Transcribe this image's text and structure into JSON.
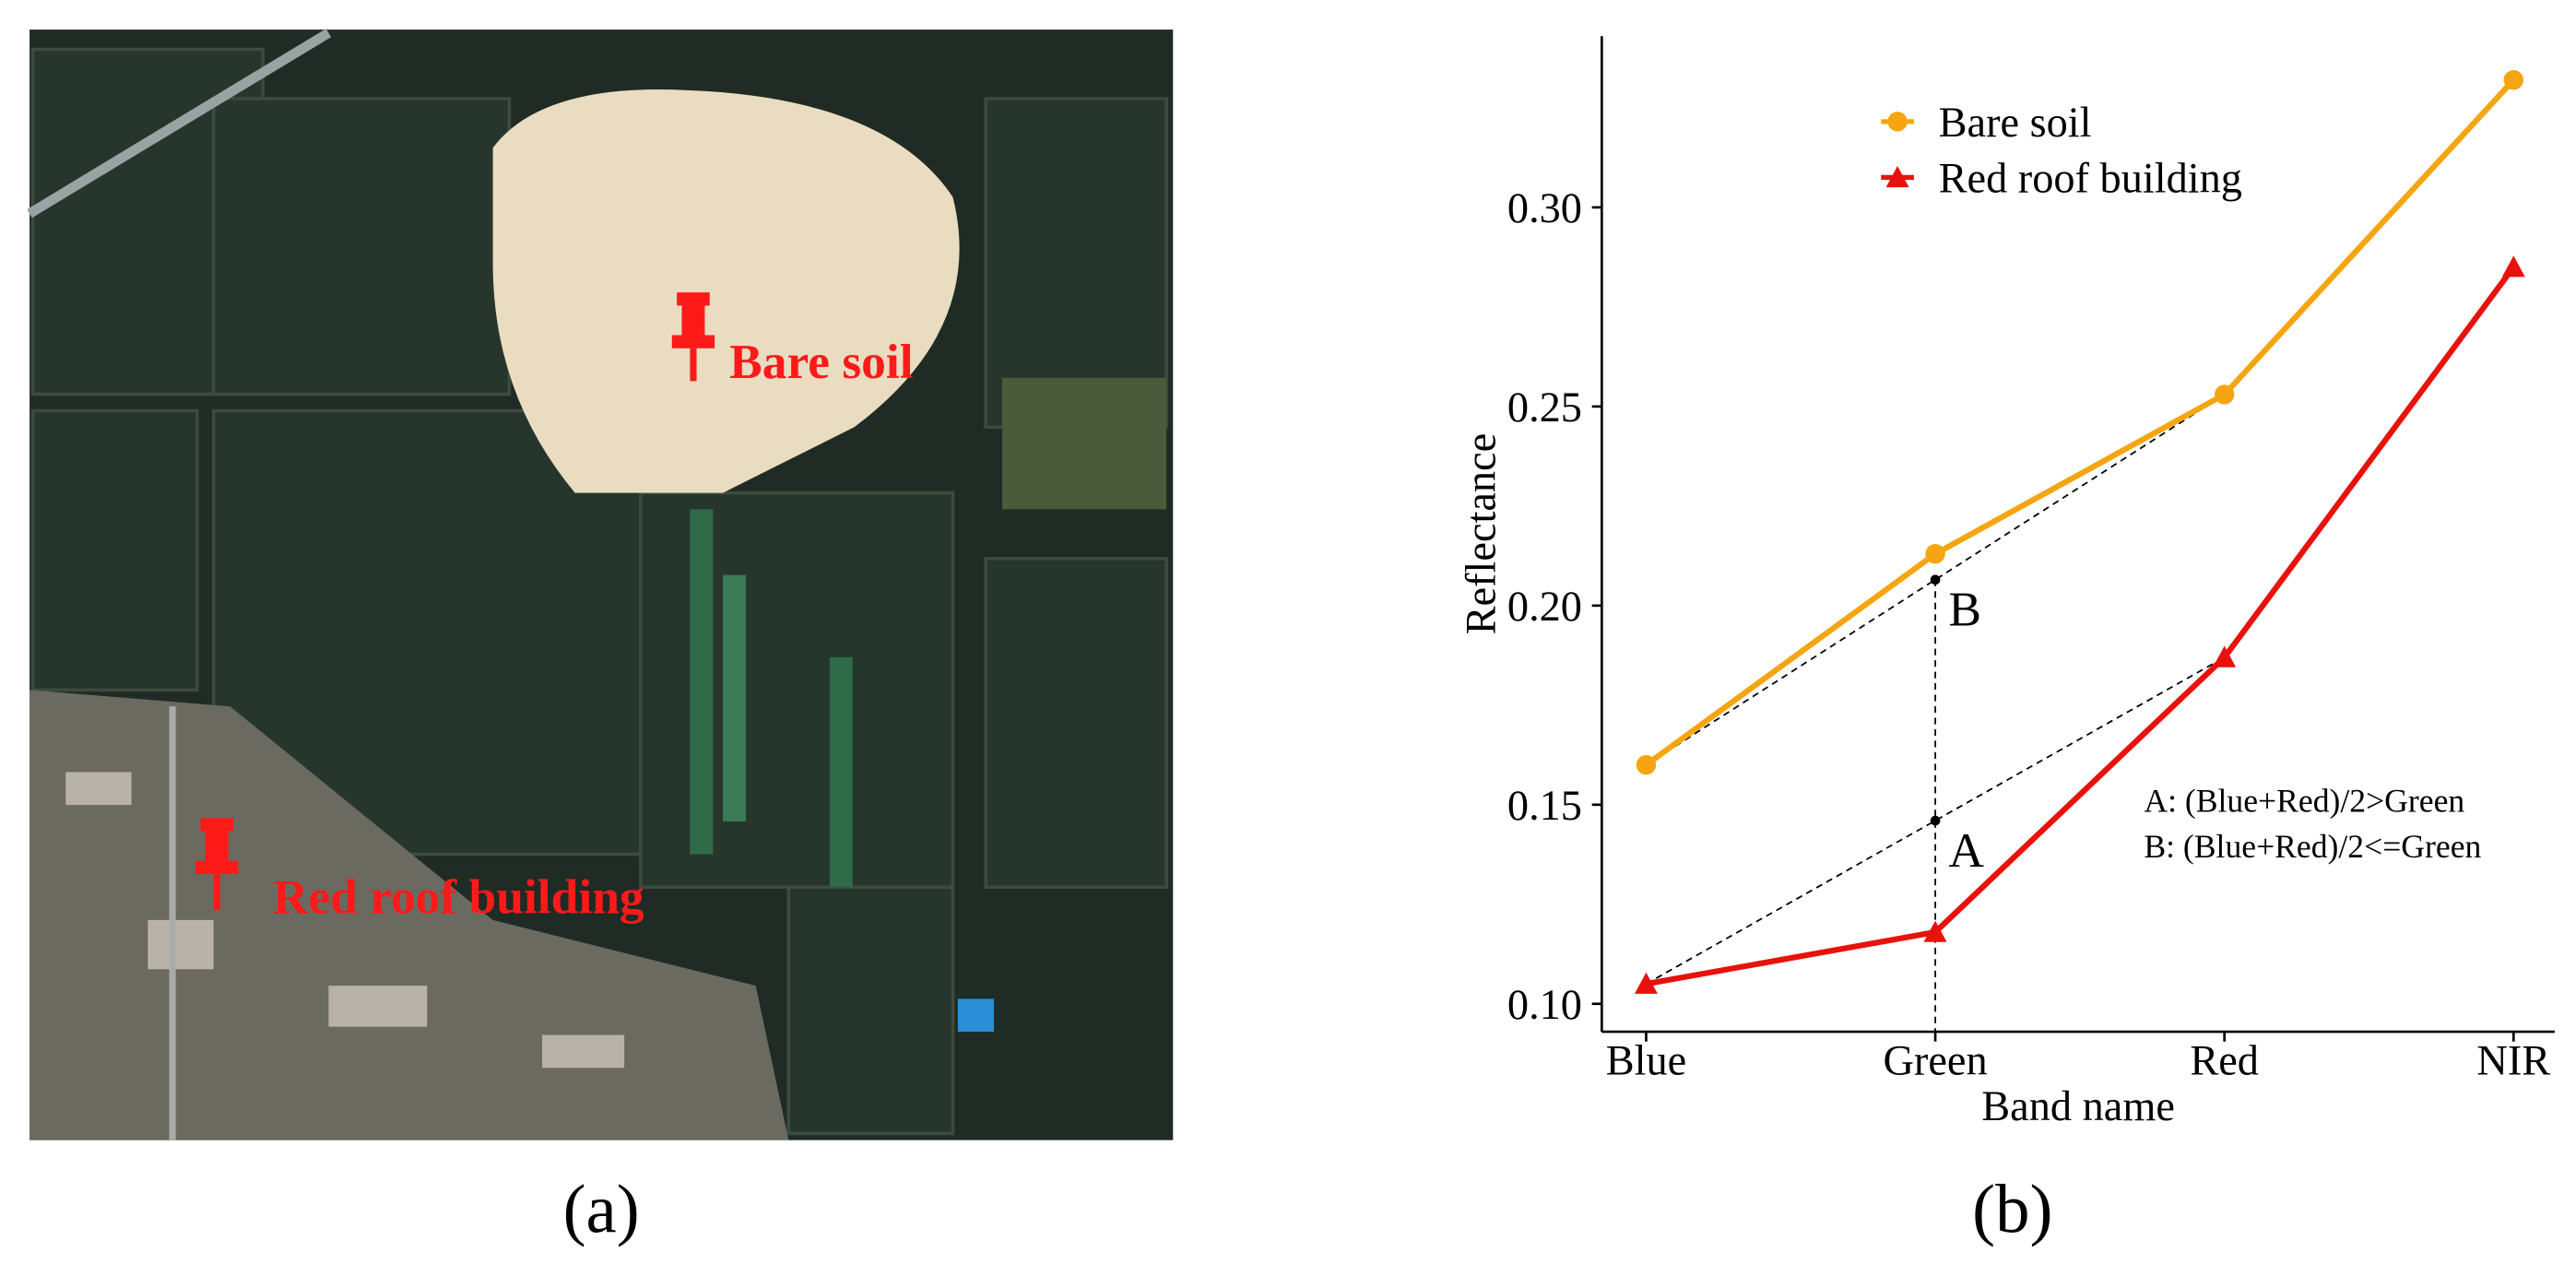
{
  "panel_a": {
    "labels": [
      "Bare soil",
      "Red roof building"
    ],
    "caption": "(a)"
  },
  "chart_data": {
    "type": "line",
    "caption": "(b)",
    "x_label": "Band name",
    "y_label": "Reflectance",
    "categories": [
      "Blue",
      "Green",
      "Red",
      "NIR"
    ],
    "series": [
      {
        "name": "Bare soil",
        "color": "#f5a511",
        "marker": "circle",
        "values": [
          0.16,
          0.213,
          0.253,
          0.332
        ]
      },
      {
        "name": "Red roof building",
        "color": "#e8120c",
        "marker": "triangle",
        "values": [
          0.105,
          0.118,
          0.187,
          0.285
        ]
      }
    ],
    "ylim": [
      0.093,
      0.343
    ],
    "yticks": [
      {
        "value": 0.1,
        "label": "0.10"
      },
      {
        "value": 0.15,
        "label": "0.15"
      },
      {
        "value": 0.2,
        "label": "0.20"
      },
      {
        "value": 0.25,
        "label": "0.25"
      },
      {
        "value": 0.3,
        "label": "0.30"
      }
    ],
    "grid": false,
    "legend": "upper center",
    "annotations": [
      {
        "text": "B",
        "series": 0
      },
      {
        "text": "A",
        "series": 1
      }
    ],
    "notes": [
      "A: (Blue+Red)/2>Green",
      "B: (Blue+Red)/2<=Green"
    ]
  }
}
